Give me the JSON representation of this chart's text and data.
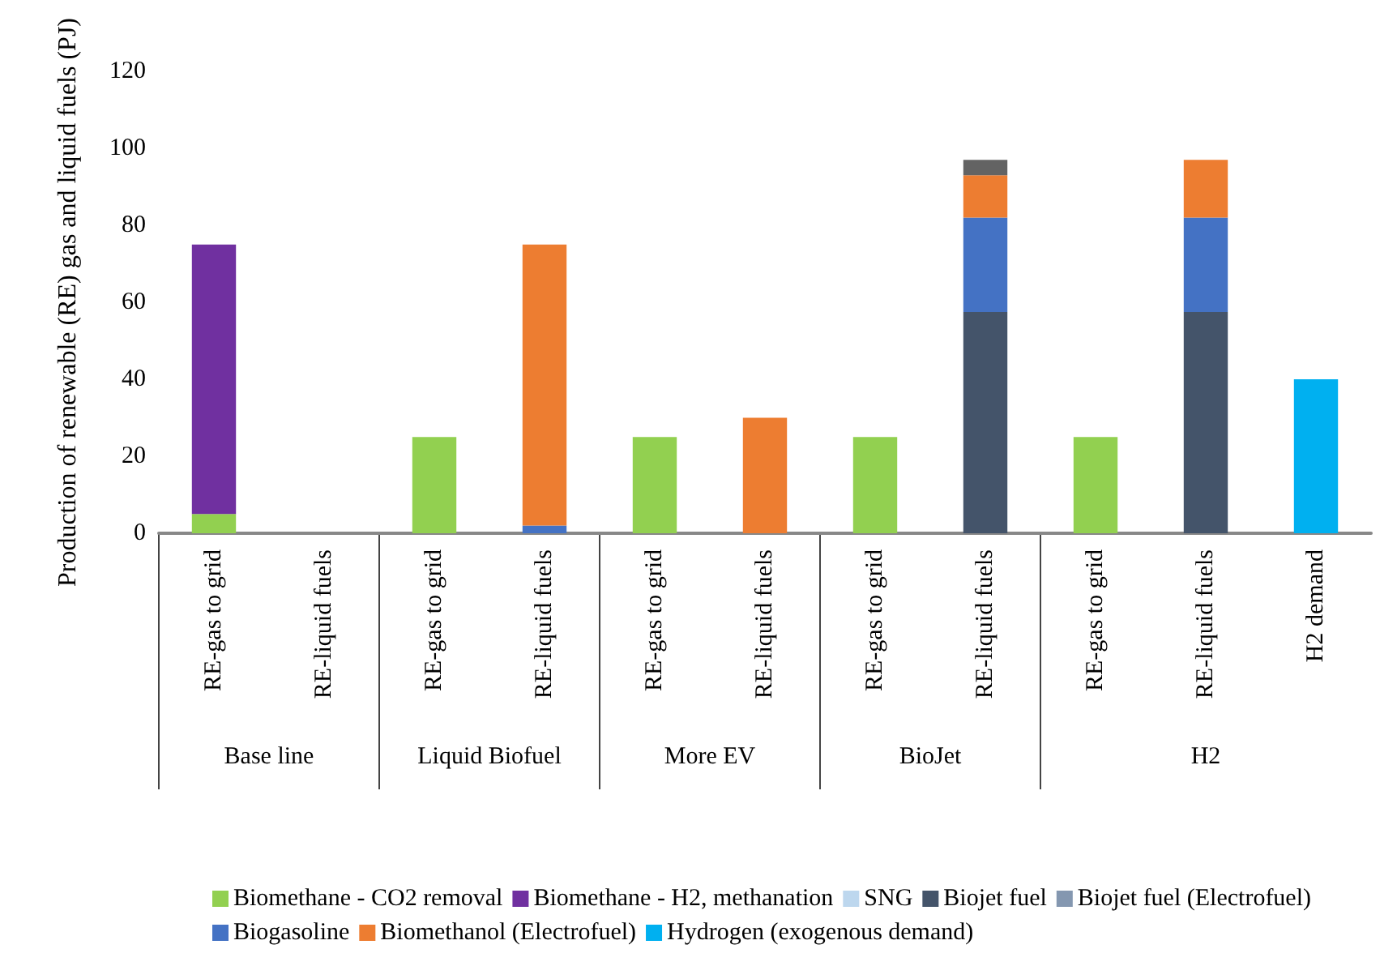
{
  "chart_data": {
    "type": "bar",
    "ylabel": "Production of renewable (RE) gas and liquid fuels (PJ)",
    "categories": [
      "RE-gas to grid",
      "RE-liquid fuels",
      "RE-gas to grid",
      "RE-liquid fuels",
      "RE-gas to grid",
      "RE-liquid fuels",
      "RE-gas to grid",
      "RE-liquid fuels",
      "RE-gas to grid",
      "RE-liquid fuels",
      "H2 demand"
    ],
    "stacked": true,
    "ylim": [
      0,
      120
    ],
    "yticks": [
      0,
      20,
      40,
      60,
      80,
      100,
      120
    ],
    "grid": false,
    "legend": "bottom",
    "annotations": [
      "Base line",
      "Liquid Biofuel",
      "More EV",
      "BioJet",
      "H2"
    ],
    "series": [
      {
        "name": "Biomethane - CO2 removal",
        "color": "#92d050",
        "values": [
          5,
          null,
          25,
          null,
          25,
          null,
          25,
          null,
          25,
          null,
          null
        ]
      },
      {
        "name": "Biomethane - H2, methanation",
        "color": "#7030a0",
        "values": [
          70,
          null,
          null,
          null,
          null,
          null,
          null,
          null,
          null,
          null,
          null
        ]
      },
      {
        "name": "SNG",
        "color": "#bdd7ee",
        "values": [
          null,
          null,
          null,
          null,
          null,
          null,
          null,
          null,
          null,
          null,
          null
        ]
      },
      {
        "name": "Biojet fuel",
        "color": "#44546a",
        "values": [
          null,
          null,
          null,
          null,
          null,
          null,
          null,
          57.5,
          null,
          57.5,
          null
        ]
      },
      {
        "name": "Biojet fuel (Electrofuel)",
        "color": "#8497b0",
        "values": [
          null,
          null,
          null,
          null,
          null,
          null,
          null,
          null,
          null,
          null,
          null
        ]
      },
      {
        "name": "Biogasoline",
        "color": "#4472c4",
        "values": [
          null,
          null,
          null,
          2,
          null,
          null,
          null,
          24.5,
          null,
          24.5,
          null
        ]
      },
      {
        "name": "Biomethanol (Electrofuel)",
        "color": "#ed7d31",
        "values": [
          null,
          null,
          null,
          73,
          null,
          30,
          null,
          11,
          null,
          15,
          null
        ]
      },
      {
        "name": "Hydrogen (exogenous demand)",
        "color": "#00b0f0",
        "values": [
          null,
          null,
          null,
          null,
          null,
          null,
          null,
          null,
          null,
          null,
          40
        ]
      },
      {
        "color": "#636363",
        "values": [
          null,
          null,
          null,
          null,
          null,
          null,
          null,
          4,
          null,
          null,
          null
        ]
      }
    ]
  }
}
